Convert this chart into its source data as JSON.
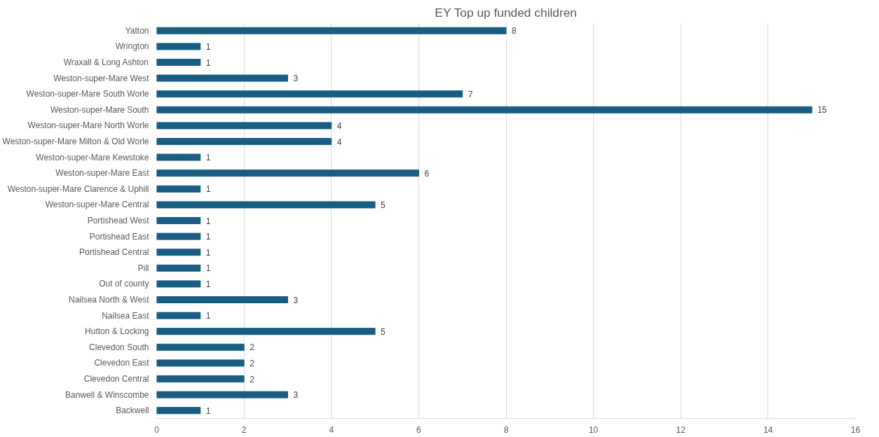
{
  "chart_data": {
    "type": "bar",
    "orientation": "horizontal",
    "title": "EY Top up funded children",
    "categories": [
      "Yatton",
      "Wrington",
      "Wraxall & Long Ashton",
      "Weston-super-Mare West",
      "Weston-super-Mare South Worle",
      "Weston-super-Mare South",
      "Weston-super-Mare North Worle",
      "Weston-super-Mare Milton & Old Worle",
      "Weston-super-Mare Kewstoke",
      "Weston-super-Mare East",
      "Weston-super-Mare Clarence & Uphill",
      "Weston-super-Mare Central",
      "Portishead West",
      "Portishead East",
      "Portishead Central",
      "Pill",
      "Out of county",
      "Nailsea North & West",
      "Nailsea East",
      "Hutton & Locking",
      "Clevedon South",
      "Clevedon East",
      "Clevedon Central",
      "Banwell & Winscombe",
      "Backwell"
    ],
    "values": [
      8,
      1,
      1,
      3,
      7,
      15,
      4,
      4,
      1,
      6,
      1,
      5,
      1,
      1,
      1,
      1,
      1,
      3,
      1,
      5,
      2,
      2,
      2,
      3,
      1
    ],
    "color": "#195e82",
    "xlim": [
      0,
      16
    ],
    "xticks": [
      0,
      2,
      4,
      6,
      8,
      10,
      12,
      14,
      16
    ],
    "grid": "x",
    "data_labels": true
  }
}
